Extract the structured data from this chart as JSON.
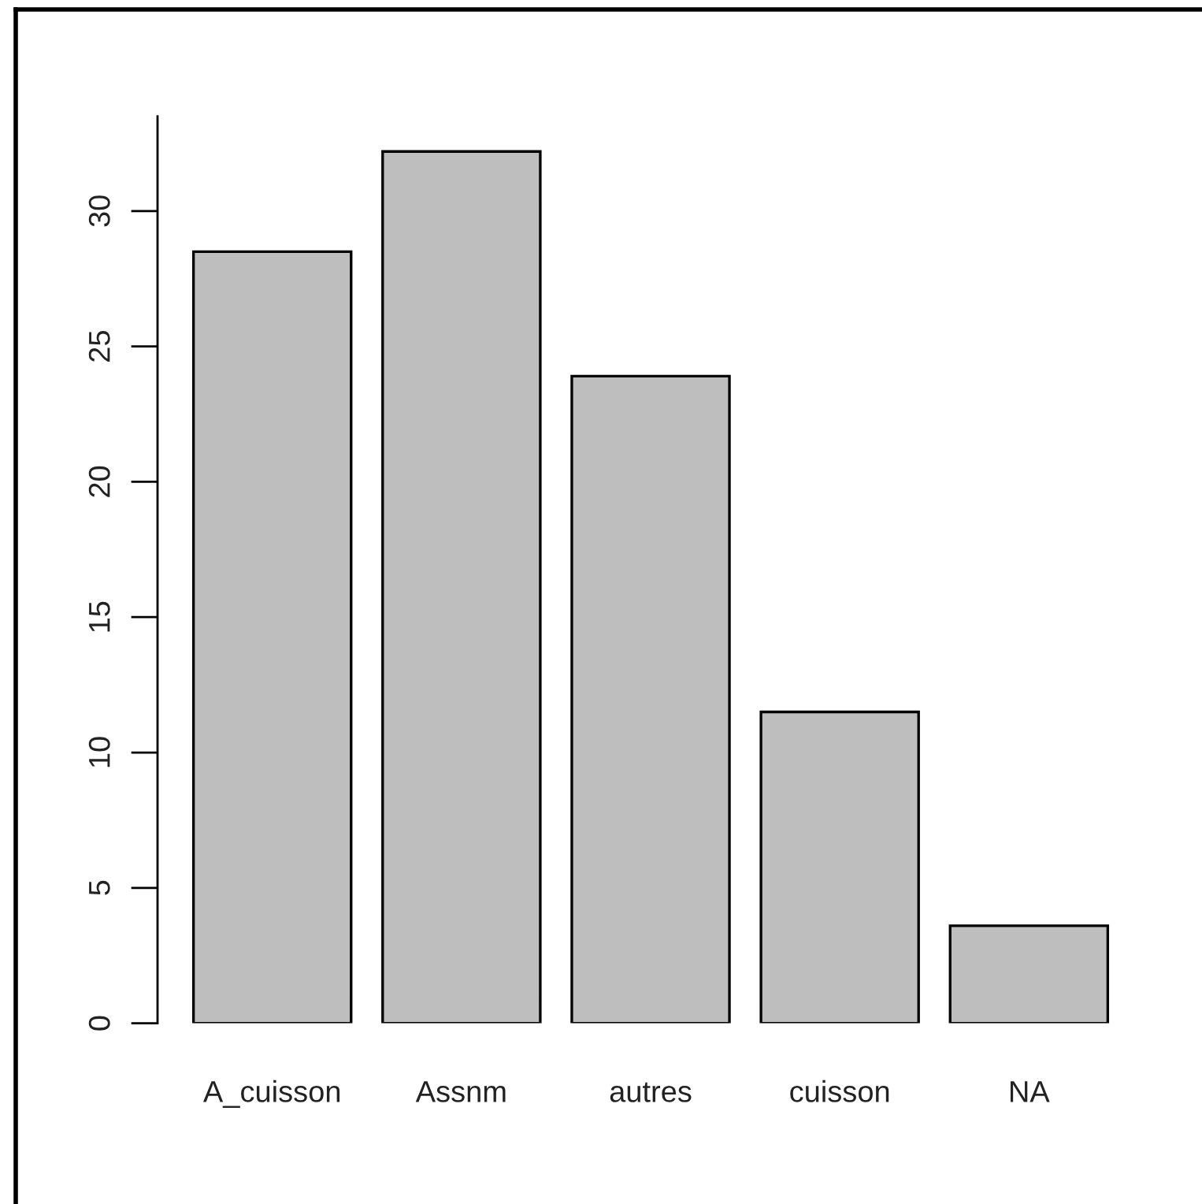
{
  "chart_data": {
    "type": "bar",
    "categories": [
      "A_cuisson",
      "Assnm",
      "autres",
      "cuisson",
      "NA"
    ],
    "values": [
      28.5,
      32.2,
      23.9,
      11.5,
      3.6
    ],
    "color": "#bebebe",
    "ylim": [
      0,
      33.5
    ],
    "yticks": [
      0,
      5,
      10,
      15,
      20,
      25,
      30
    ]
  }
}
